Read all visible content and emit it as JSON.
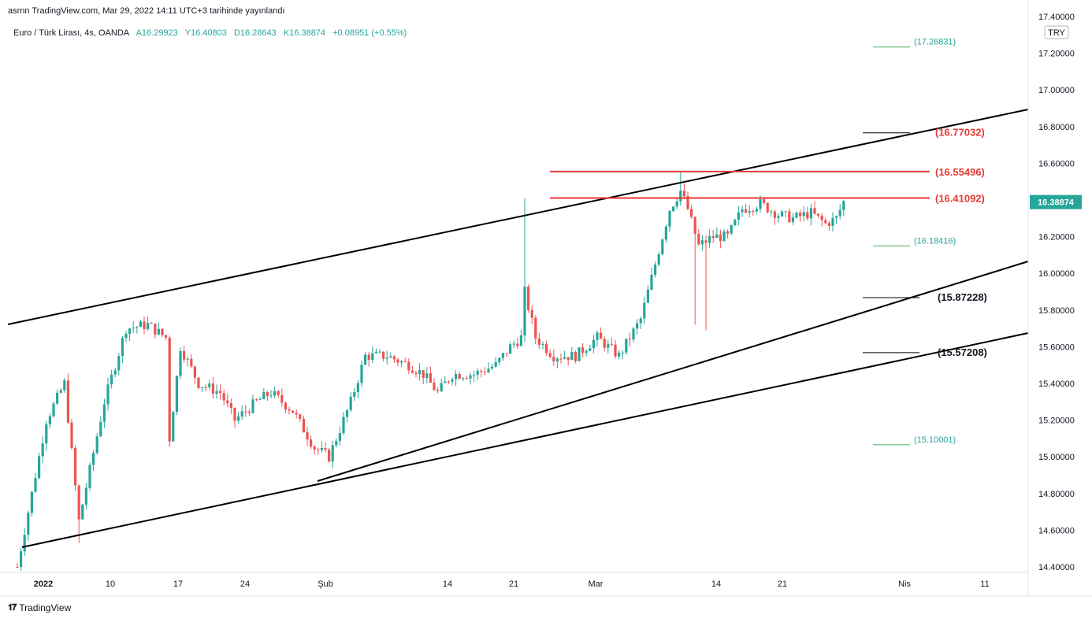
{
  "header": {
    "published": "asrnn TradingView.com, Mar 29, 2022 14:11 UTC+3 tarihinde yayınlandı",
    "symbol": "Euro / Türk Lirası, 4s, OANDA",
    "ohlc": [
      "A16.29923",
      "Y16.40803",
      "D16.28643",
      "K16.38874",
      "+0.08951 (+0.55%)"
    ]
  },
  "footer": {
    "brand": "TradingView"
  },
  "colors": {
    "up": "#26a69a",
    "down": "#ef5350",
    "resistance": "#e53935",
    "trendline": "#000000",
    "target": "#4caf50",
    "target_text": "#26a69a"
  },
  "chart_data": {
    "type": "candlestick",
    "currency_badge": "TRY",
    "last_price": 16.38874,
    "ylim": [
      14.37,
      17.37
    ],
    "y_ticks": [
      "17.40000",
      "17.20000",
      "17.00000",
      "16.80000",
      "16.60000",
      "16.40000",
      "16.20000",
      "16.00000",
      "15.80000",
      "15.60000",
      "15.40000",
      "15.20000",
      "15.00000",
      "14.80000",
      "14.60000",
      "14.40000"
    ],
    "x_ticks": [
      "2022",
      "10",
      "17",
      "24",
      "Şub",
      "14",
      "21",
      "Mar",
      "14",
      "21",
      "Nis",
      "11"
    ],
    "price_path": [
      [
        0,
        14.4
      ],
      [
        4,
        14.8
      ],
      [
        8,
        15.2
      ],
      [
        13,
        15.4
      ],
      [
        17,
        14.65
      ],
      [
        24,
        15.3
      ],
      [
        30,
        15.7
      ],
      [
        36,
        15.72
      ],
      [
        41,
        15.65
      ],
      [
        42,
        15.1
      ],
      [
        45,
        15.6
      ],
      [
        50,
        15.4
      ],
      [
        56,
        15.35
      ],
      [
        60,
        15.2
      ],
      [
        66,
        15.3
      ],
      [
        70,
        15.35
      ],
      [
        76,
        15.25
      ],
      [
        82,
        15.05
      ],
      [
        86,
        15.0
      ],
      [
        92,
        15.3
      ],
      [
        96,
        15.55
      ],
      [
        102,
        15.55
      ],
      [
        108,
        15.5
      ],
      [
        112,
        15.45
      ],
      [
        116,
        15.35
      ],
      [
        120,
        15.45
      ],
      [
        126,
        15.45
      ],
      [
        132,
        15.5
      ],
      [
        136,
        15.6
      ],
      [
        139,
        15.65
      ],
      [
        140,
        15.9
      ],
      [
        143,
        15.65
      ],
      [
        148,
        15.55
      ],
      [
        154,
        15.55
      ],
      [
        160,
        15.65
      ],
      [
        166,
        15.55
      ],
      [
        172,
        15.75
      ],
      [
        176,
        16.05
      ],
      [
        180,
        16.35
      ],
      [
        183,
        16.45
      ],
      [
        185,
        16.35
      ],
      [
        188,
        16.15
      ],
      [
        192,
        16.2
      ],
      [
        196,
        16.2
      ],
      [
        200,
        16.35
      ],
      [
        205,
        16.38
      ],
      [
        210,
        16.32
      ],
      [
        214,
        16.3
      ],
      [
        219,
        16.33
      ],
      [
        223,
        16.27
      ],
      [
        226,
        16.3
      ],
      [
        228,
        16.39
      ]
    ],
    "levels": [
      {
        "label": "(17.26831)",
        "value": 17.26831,
        "kind": "target"
      },
      {
        "label": "(16.77032)",
        "value": 16.77032,
        "kind": "resistance"
      },
      {
        "label": "(16.55496)",
        "value": 16.55496,
        "kind": "resistance"
      },
      {
        "label": "(16.41092)",
        "value": 16.41092,
        "kind": "resistance"
      },
      {
        "label": "(16.18416)",
        "value": 16.18416,
        "kind": "target"
      },
      {
        "label": "(15.87228)",
        "value": 15.87228,
        "kind": "support"
      },
      {
        "label": "(15.57208)",
        "value": 15.57208,
        "kind": "support"
      },
      {
        "label": "(15.10001)",
        "value": 15.10001,
        "kind": "target"
      }
    ],
    "title": "",
    "xlabel": "",
    "ylabel": ""
  }
}
